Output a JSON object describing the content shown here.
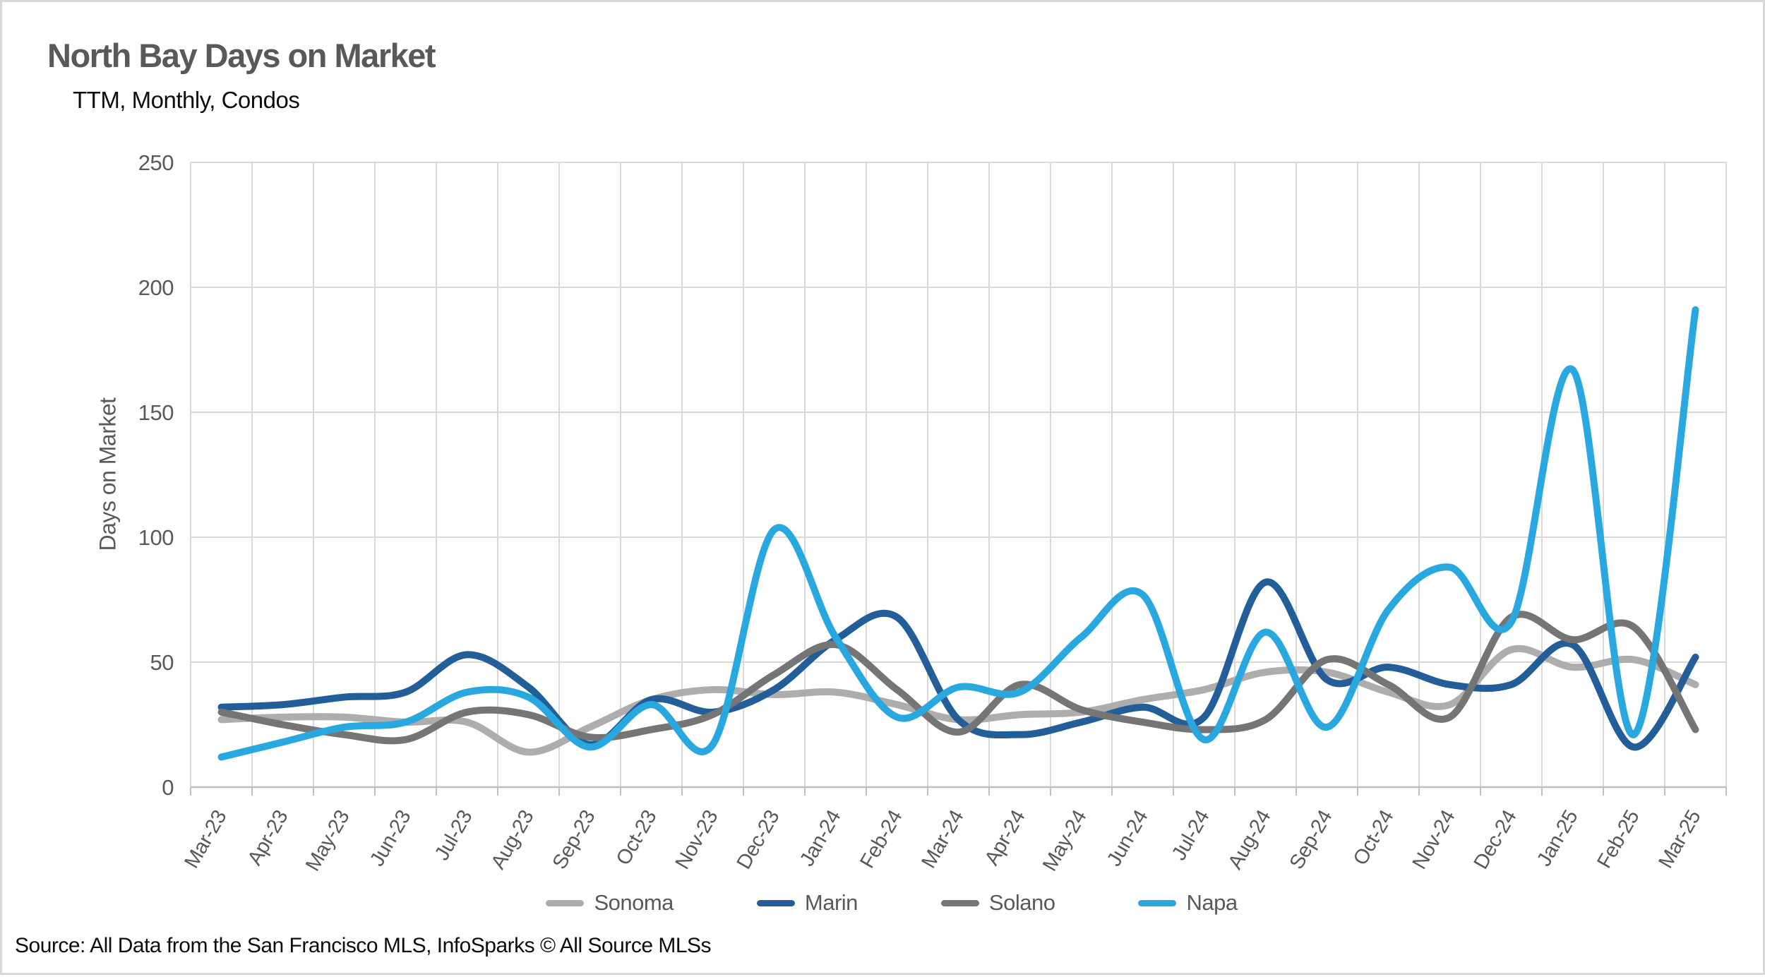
{
  "chart_data": {
    "type": "line",
    "title": "North Bay Days on Market",
    "subtitle": "TTM, Monthly, Condos",
    "ylabel": "Days on Market",
    "xlabel": "",
    "ylim": [
      0,
      250
    ],
    "y_ticks": [
      0,
      50,
      100,
      150,
      200,
      250
    ],
    "grid": true,
    "smooth_lines": true,
    "legend_position": "bottom",
    "x_tick_rotation": -60,
    "categories": [
      "Mar-23",
      "Apr-23",
      "May-23",
      "Jun-23",
      "Jul-23",
      "Aug-23",
      "Sep-23",
      "Oct-23",
      "Nov-23",
      "Dec-23",
      "Jan-24",
      "Feb-24",
      "Mar-24",
      "Apr-24",
      "May-24",
      "Jun-24",
      "Jul-24",
      "Aug-24",
      "Sep-24",
      "Oct-24",
      "Nov-24",
      "Dec-24",
      "Jan-25",
      "Feb-25",
      "Mar-25"
    ],
    "series": [
      {
        "name": "Sonoma",
        "color": "#adadad",
        "values": [
          27,
          28,
          28,
          26,
          26,
          14,
          24,
          35,
          39,
          37,
          38,
          33,
          27,
          29,
          30,
          35,
          39,
          46,
          46,
          38,
          33,
          55,
          48,
          51,
          41
        ]
      },
      {
        "name": "Marin",
        "color": "#235e98",
        "values": [
          32,
          33,
          36,
          38,
          53,
          40,
          17,
          35,
          30,
          39,
          59,
          68,
          27,
          21,
          26,
          32,
          28,
          82,
          43,
          48,
          41,
          41,
          57,
          16,
          52
        ]
      },
      {
        "name": "Solano",
        "color": "#757575",
        "values": [
          30,
          25,
          21,
          19,
          30,
          29,
          20,
          23,
          29,
          45,
          57,
          39,
          22,
          41,
          31,
          26,
          23,
          27,
          51,
          41,
          28,
          68,
          59,
          64,
          23
        ]
      },
      {
        "name": "Napa",
        "color": "#29a8df",
        "values": [
          12,
          18,
          24,
          26,
          38,
          36,
          16,
          33,
          17,
          103,
          60,
          28,
          40,
          38,
          60,
          77,
          19,
          62,
          24,
          71,
          88,
          66,
          167,
          21,
          191
        ]
      }
    ],
    "source": "Source: All Data from the San Francisco MLS, InfoSparks © All Source MLSs"
  }
}
